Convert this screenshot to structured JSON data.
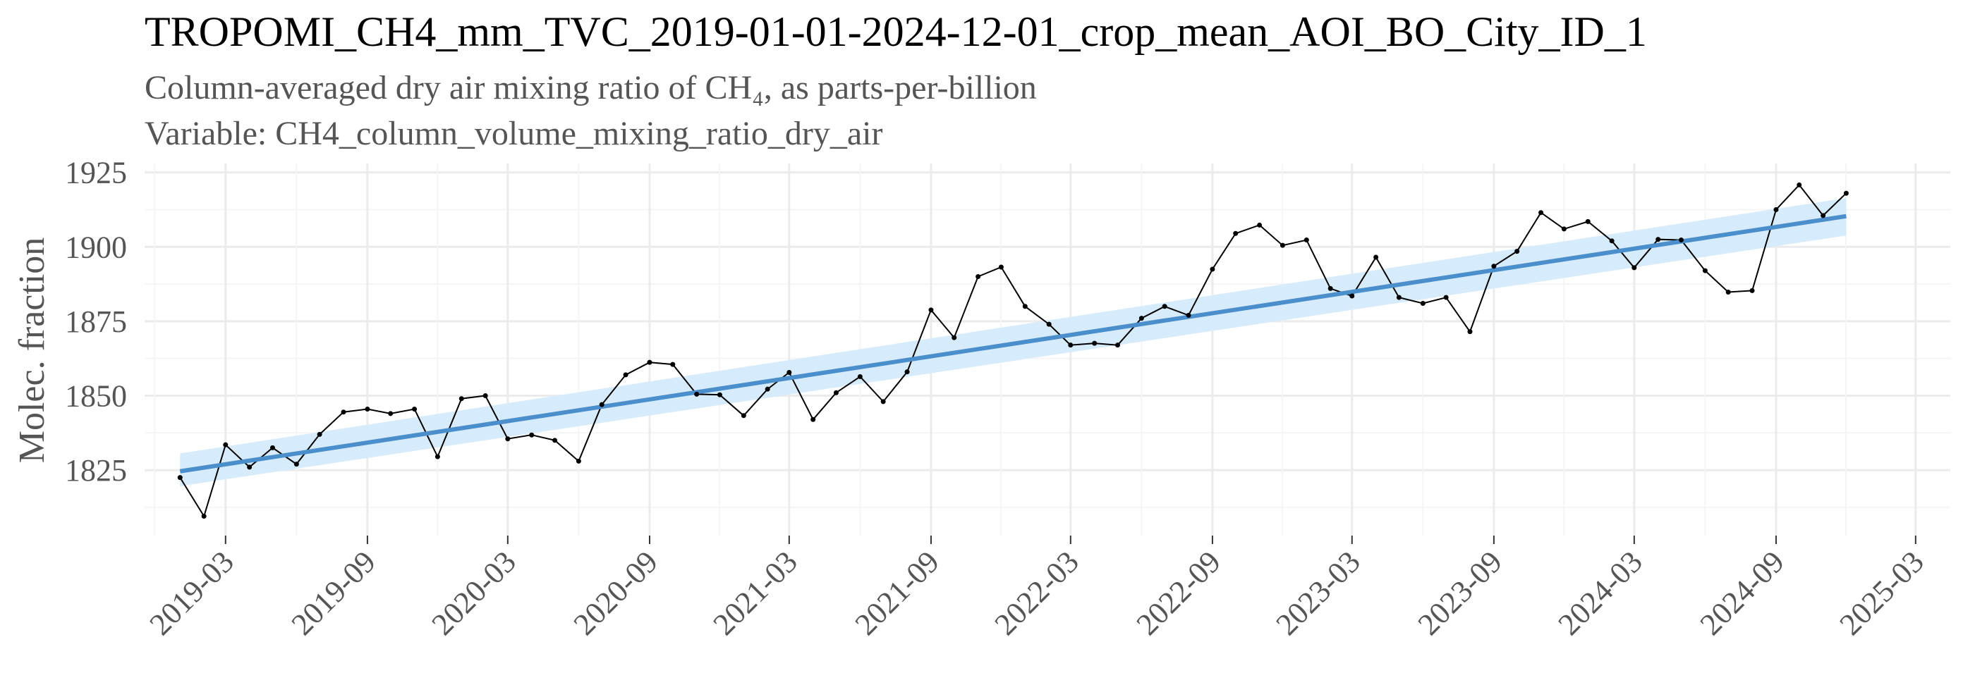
{
  "chart_data": {
    "type": "line",
    "title": "TROPOMI_CH4_mm_TVC_2019-01-01-2024-12-01_crop_mean_AOI_BO_City_ID_1",
    "subtitle_lines": [
      "Column-averaged dry air mixing ratio of CH₄, as parts-per-billion",
      "Variable: CH4_column_volume_mixing_ratio_dry_air"
    ],
    "xlabel": "",
    "ylabel": "Molec. fraction",
    "y_ticks": [
      1825,
      1850,
      1875,
      1900,
      1925
    ],
    "x_ticks": [
      "2019-03",
      "2019-09",
      "2020-03",
      "2020-09",
      "2021-03",
      "2021-09",
      "2022-03",
      "2022-09",
      "2023-03",
      "2023-09",
      "2024-03",
      "2024-09",
      "2025-03"
    ],
    "xlim": [
      "2018-11-16",
      "2025-04-15"
    ],
    "ylim": [
      1803,
      1928
    ],
    "grid": true,
    "legend": "none",
    "colors": {
      "line": "#000000",
      "trend": "#4a8ecb",
      "band": "#d6ebfb",
      "grid_major": "#ebebeb",
      "grid_minor": "#f5f5f5"
    },
    "series": [
      {
        "kind": "observed",
        "x": [
          "2019-01-01",
          "2019-02-01",
          "2019-03-01",
          "2019-04-01",
          "2019-05-01",
          "2019-06-01",
          "2019-07-01",
          "2019-08-01",
          "2019-09-01",
          "2019-10-01",
          "2019-11-01",
          "2019-12-01",
          "2020-01-01",
          "2020-02-01",
          "2020-03-01",
          "2020-04-01",
          "2020-05-01",
          "2020-06-01",
          "2020-07-01",
          "2020-08-01",
          "2020-09-01",
          "2020-10-01",
          "2020-11-01",
          "2020-12-01",
          "2021-01-01",
          "2021-02-01",
          "2021-03-01",
          "2021-04-01",
          "2021-05-01",
          "2021-06-01",
          "2021-07-01",
          "2021-08-01",
          "2021-09-01",
          "2021-10-01",
          "2021-11-01",
          "2021-12-01",
          "2022-01-01",
          "2022-02-01",
          "2022-03-01",
          "2022-04-01",
          "2022-05-01",
          "2022-06-01",
          "2022-07-01",
          "2022-08-01",
          "2022-09-01",
          "2022-10-01",
          "2022-11-01",
          "2022-12-01",
          "2023-01-01",
          "2023-02-01",
          "2023-03-01",
          "2023-04-01",
          "2023-05-01",
          "2023-06-01",
          "2023-07-01",
          "2023-08-01",
          "2023-09-01",
          "2023-10-01",
          "2023-11-01",
          "2023-12-01",
          "2024-01-01",
          "2024-02-01",
          "2024-03-01",
          "2024-04-01",
          "2024-05-01",
          "2024-06-01",
          "2024-07-01",
          "2024-08-01",
          "2024-09-01",
          "2024-10-01",
          "2024-11-01",
          "2024-12-01"
        ],
        "y": [
          1822.5,
          1809.5,
          1833.5,
          1826.0,
          1832.5,
          1827.0,
          1837.0,
          1844.5,
          1845.5,
          1844.0,
          1845.5,
          1829.5,
          1849.0,
          1850.0,
          1835.5,
          1836.8,
          1835.0,
          1828.0,
          1847.0,
          1857.0,
          1861.2,
          1860.5,
          1850.5,
          1850.3,
          1843.3,
          1852.2,
          1857.8,
          1842.0,
          1851.0,
          1856.4,
          1848.0,
          1858.0,
          1878.8,
          1869.5,
          1890.0,
          1893.2,
          1880.0,
          1874.0,
          1867.0,
          1867.6,
          1867.0,
          1876.0,
          1880.0,
          1877.0,
          1892.5,
          1904.5,
          1907.3,
          1900.5,
          1902.3,
          1886.0,
          1883.5,
          1896.5,
          1883.0,
          1881.0,
          1883.0,
          1871.5,
          1893.5,
          1898.5,
          1911.5,
          1906.0,
          1908.5,
          1902.0,
          1893.0,
          1902.5,
          1902.3,
          1892.0,
          1884.8,
          1885.3,
          1912.5,
          1920.8,
          1910.5,
          1918.0
        ]
      },
      {
        "kind": "linear-trend",
        "x": [
          "2019-01-01",
          "2024-12-01"
        ],
        "y": [
          1824.6,
          1910.3
        ],
        "ci_low": [
          1819.6,
          1903.8
        ],
        "ci_high": [
          1830.6,
          1916.4
        ]
      }
    ]
  }
}
